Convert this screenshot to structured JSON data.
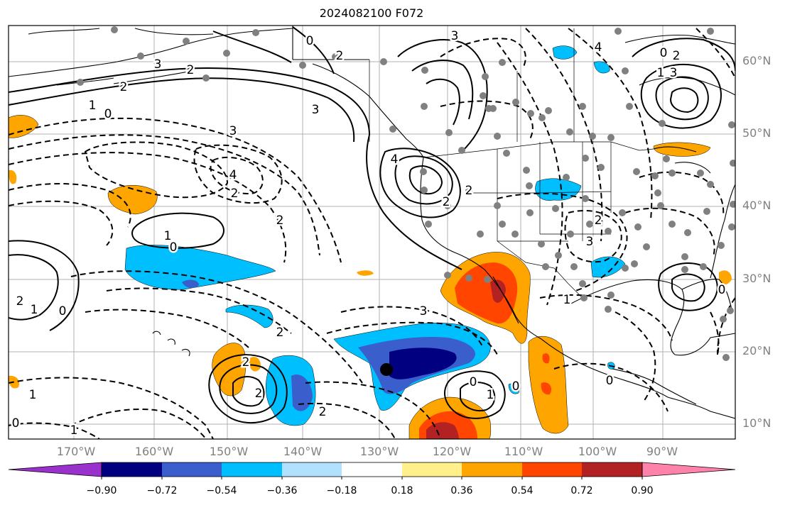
{
  "title": "2024082100 F072",
  "map": {
    "type": "synoptic-anomaly-map",
    "projection": "equirectangular",
    "gridlines": true,
    "domain": {
      "lon_range": [
        -180,
        -71
      ],
      "lat_range": [
        8,
        65
      ]
    },
    "marker": "storm-center-dot",
    "station_dots": "gray"
  },
  "lat_labels": [
    "60°N",
    "50°N",
    "40°N",
    "30°N",
    "20°N",
    "10°N"
  ],
  "lon_labels": [
    "170°W",
    "160°W",
    "150°W",
    "140°W",
    "130°W",
    "120°W",
    "110°W",
    "100°W",
    "90°W"
  ],
  "contour_labels": [
    "0",
    "2",
    "3",
    "1",
    "2",
    "0",
    "3",
    "4",
    "2",
    "3",
    "4",
    "2",
    "2",
    "1",
    "0",
    "2",
    "1",
    "0",
    "2",
    "1",
    "2",
    "2",
    "0",
    "1",
    "2",
    "3",
    "0",
    "1",
    "0",
    "0",
    "1",
    "2",
    "3",
    "2",
    "3",
    "2",
    "0",
    "1",
    "2",
    "3",
    "4",
    "0"
  ],
  "colorbar": {
    "ticks": [
      "−0.90",
      "−0.72",
      "−0.54",
      "−0.36",
      "−0.18",
      "0.18",
      "0.36",
      "0.54",
      "0.72",
      "0.90"
    ],
    "colors": [
      "#9932cc",
      "#000080",
      "#3a5fcd",
      "#00bfff",
      "#b0e2ff",
      "#ffffff",
      "#fff08c",
      "#ffa500",
      "#ff4500",
      "#b22222",
      "#ff82ab"
    ]
  }
}
